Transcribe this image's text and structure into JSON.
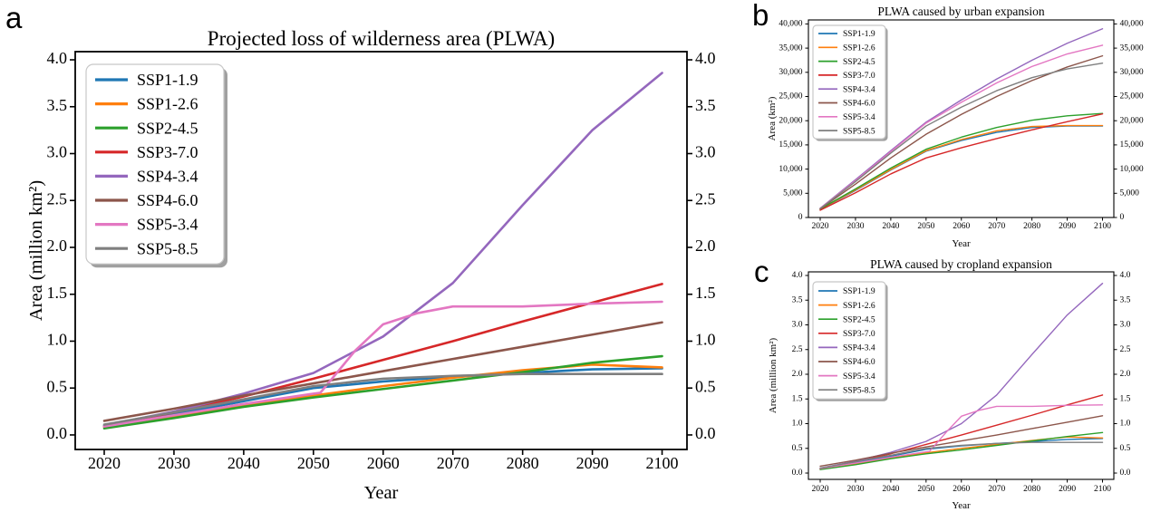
{
  "panels": [
    {
      "letter": "a"
    },
    {
      "letter": "b"
    },
    {
      "letter": "c"
    }
  ],
  "colors": {
    "SSP1-1.9": "#1f77b4",
    "SSP1-2.6": "#ff7f0e",
    "SSP2-4.5": "#2ca02c",
    "SSP3-7.0": "#d62728",
    "SSP4-3.4": "#9467bd",
    "SSP4-6.0": "#8c564b",
    "SSP5-3.4": "#e377c2",
    "SSP5-8.5": "#7f7f7f"
  },
  "chart_data": [
    {
      "type": "line",
      "panel": "a",
      "title": "Projected loss of wilderness area (PLWA)",
      "xlabel": "Year",
      "ylabel": "Area (million km²)",
      "xlim": [
        2020,
        2100
      ],
      "ylim": [
        0.0,
        4.0
      ],
      "grid": false,
      "legend_position": "upper left",
      "axes_mirrored": true,
      "xticks": [
        2020,
        2030,
        2040,
        2050,
        2060,
        2070,
        2080,
        2090,
        2100
      ],
      "xtick_labels": [
        "2020",
        "2030",
        "2040",
        "2050",
        "2060",
        "2070",
        "2080",
        "2090",
        "2100"
      ],
      "ytick_values": [
        0,
        0.5,
        1,
        1.5,
        2,
        2.5,
        3,
        3.5,
        4
      ],
      "ytick_labels": [
        "0.0",
        "0.5",
        "1.0",
        "1.5",
        "2.0",
        "2.5",
        "3.0",
        "3.5",
        "4.0"
      ],
      "x_default": [
        2020,
        2030,
        2040,
        2050,
        2060,
        2070,
        2080,
        2090,
        2100
      ],
      "series": [
        {
          "name": "SSP1-1.9",
          "color": "#1f77b4",
          "y": [
            0.1,
            0.22,
            0.36,
            0.5,
            0.57,
            0.62,
            0.66,
            0.7,
            0.71
          ]
        },
        {
          "name": "SSP1-2.6",
          "color": "#ff7f0e",
          "y": [
            0.08,
            0.2,
            0.32,
            0.42,
            0.52,
            0.61,
            0.69,
            0.75,
            0.72
          ]
        },
        {
          "name": "SSP2-4.5",
          "color": "#2ca02c",
          "y": [
            0.07,
            0.18,
            0.3,
            0.4,
            0.49,
            0.58,
            0.67,
            0.77,
            0.84
          ]
        },
        {
          "name": "SSP3-7.0",
          "color": "#d62728",
          "y": [
            0.09,
            0.24,
            0.41,
            0.6,
            0.8,
            1.0,
            1.21,
            1.41,
            1.61
          ]
        },
        {
          "name": "SSP4-3.4",
          "color": "#9467bd",
          "y": [
            0.1,
            0.25,
            0.44,
            0.66,
            1.05,
            1.62,
            2.45,
            3.25,
            3.86
          ]
        },
        {
          "name": "SSP4-6.0",
          "color": "#8c564b",
          "y": [
            0.15,
            0.28,
            0.42,
            0.55,
            0.68,
            0.81,
            0.94,
            1.07,
            1.2
          ]
        },
        {
          "name": "SSP5-3.4",
          "color": "#e377c2",
          "x": [
            2020,
            2030,
            2040,
            2050,
            2051,
            2056,
            2060,
            2065,
            2070,
            2080,
            2090,
            2100
          ],
          "y": [
            0.09,
            0.21,
            0.33,
            0.44,
            0.45,
            0.9,
            1.18,
            1.3,
            1.37,
            1.37,
            1.4,
            1.42
          ]
        },
        {
          "name": "SSP5-8.5",
          "color": "#7f7f7f",
          "y": [
            0.11,
            0.24,
            0.38,
            0.52,
            0.6,
            0.63,
            0.65,
            0.65,
            0.65
          ]
        }
      ]
    },
    {
      "type": "line",
      "panel": "b",
      "title": "PLWA caused by urban expansion",
      "xlabel": "Year",
      "ylabel": "Area (km²)",
      "xlim": [
        2020,
        2100
      ],
      "ylim": [
        0,
        40000
      ],
      "grid": false,
      "legend_position": "upper left",
      "axes_mirrored": true,
      "xticks": [
        2020,
        2030,
        2040,
        2050,
        2060,
        2070,
        2080,
        2090,
        2100
      ],
      "xtick_labels": [
        "2020",
        "2030",
        "2040",
        "2050",
        "2060",
        "2070",
        "2080",
        "2090",
        "2100"
      ],
      "ytick_values": [
        0,
        5000,
        10000,
        15000,
        20000,
        25000,
        30000,
        35000,
        40000
      ],
      "ytick_labels": [
        "0",
        "5,000",
        "10,000",
        "15,000",
        "20,000",
        "25,000",
        "30,000",
        "35,000",
        "40,000"
      ],
      "x_default": [
        2020,
        2030,
        2040,
        2050,
        2060,
        2070,
        2080,
        2090,
        2100
      ],
      "series": [
        {
          "name": "SSP1-1.9",
          "color": "#1f77b4",
          "y": [
            1650,
            5600,
            9800,
            13700,
            15900,
            17600,
            18600,
            18900,
            18900
          ]
        },
        {
          "name": "SSP1-2.6",
          "color": "#ff7f0e",
          "y": [
            1700,
            5700,
            9900,
            13800,
            16100,
            17900,
            18800,
            19000,
            19000
          ]
        },
        {
          "name": "SSP2-4.5",
          "color": "#2ca02c",
          "y": [
            1750,
            5900,
            10200,
            14100,
            16600,
            18600,
            20100,
            21000,
            21500
          ]
        },
        {
          "name": "SSP3-7.0",
          "color": "#d62728",
          "y": [
            1500,
            5100,
            9000,
            12300,
            14400,
            16300,
            18100,
            19800,
            21400
          ]
        },
        {
          "name": "SSP4-3.4",
          "color": "#9467bd",
          "y": [
            1900,
            7800,
            13800,
            19700,
            24300,
            28600,
            32500,
            36000,
            39000
          ]
        },
        {
          "name": "SSP4-6.0",
          "color": "#8c564b",
          "y": [
            1800,
            6900,
            12300,
            17200,
            21300,
            25000,
            28300,
            31100,
            33400
          ]
        },
        {
          "name": "SSP5-3.4",
          "color": "#e377c2",
          "y": [
            1900,
            7600,
            13600,
            19500,
            23800,
            27800,
            31200,
            33800,
            35600
          ]
        },
        {
          "name": "SSP5-8.5",
          "color": "#7f7f7f",
          "y": [
            1850,
            7400,
            13300,
            18900,
            22800,
            26200,
            28900,
            30700,
            31900
          ]
        }
      ]
    },
    {
      "type": "line",
      "panel": "c",
      "title": "PLWA caused by cropland expansion",
      "xlabel": "Year",
      "ylabel": "Area (million km²)",
      "xlim": [
        2020,
        2100
      ],
      "ylim": [
        0.0,
        4.0
      ],
      "grid": false,
      "legend_position": "upper left",
      "axes_mirrored": true,
      "xticks": [
        2020,
        2030,
        2040,
        2050,
        2060,
        2070,
        2080,
        2090,
        2100
      ],
      "xtick_labels": [
        "2020",
        "2030",
        "2040",
        "2050",
        "2060",
        "2070",
        "2080",
        "2090",
        "2100"
      ],
      "ytick_values": [
        0,
        0.5,
        1,
        1.5,
        2,
        2.5,
        3,
        3.5,
        4
      ],
      "ytick_labels": [
        "0.0",
        "0.5",
        "1.0",
        "1.5",
        "2.0",
        "2.5",
        "3.0",
        "3.5",
        "4.0"
      ],
      "x_default": [
        2020,
        2030,
        2040,
        2050,
        2060,
        2070,
        2080,
        2090,
        2100
      ],
      "series": [
        {
          "name": "SSP1-1.9",
          "color": "#1f77b4",
          "y": [
            0.09,
            0.21,
            0.34,
            0.48,
            0.55,
            0.6,
            0.64,
            0.68,
            0.7
          ]
        },
        {
          "name": "SSP1-2.6",
          "color": "#ff7f0e",
          "y": [
            0.08,
            0.19,
            0.31,
            0.41,
            0.5,
            0.58,
            0.66,
            0.73,
            0.71
          ]
        },
        {
          "name": "SSP2-4.5",
          "color": "#2ca02c",
          "y": [
            0.07,
            0.17,
            0.29,
            0.39,
            0.47,
            0.56,
            0.65,
            0.74,
            0.82
          ]
        },
        {
          "name": "SSP3-7.0",
          "color": "#d62728",
          "y": [
            0.09,
            0.23,
            0.39,
            0.58,
            0.77,
            0.97,
            1.17,
            1.38,
            1.58
          ]
        },
        {
          "name": "SSP4-3.4",
          "color": "#9467bd",
          "y": [
            0.1,
            0.24,
            0.42,
            0.64,
            1.0,
            1.58,
            2.4,
            3.2,
            3.84
          ]
        },
        {
          "name": "SSP4-6.0",
          "color": "#8c564b",
          "y": [
            0.14,
            0.26,
            0.4,
            0.53,
            0.65,
            0.77,
            0.9,
            1.03,
            1.16
          ]
        },
        {
          "name": "SSP5-3.4",
          "color": "#e377c2",
          "x": [
            2020,
            2030,
            2040,
            2050,
            2051,
            2056,
            2060,
            2065,
            2070,
            2080,
            2090,
            2100
          ],
          "y": [
            0.09,
            0.2,
            0.32,
            0.43,
            0.44,
            0.85,
            1.15,
            1.27,
            1.35,
            1.35,
            1.37,
            1.38
          ]
        },
        {
          "name": "SSP5-8.5",
          "color": "#7f7f7f",
          "y": [
            0.1,
            0.23,
            0.36,
            0.5,
            0.56,
            0.6,
            0.62,
            0.62,
            0.62
          ]
        }
      ]
    }
  ]
}
